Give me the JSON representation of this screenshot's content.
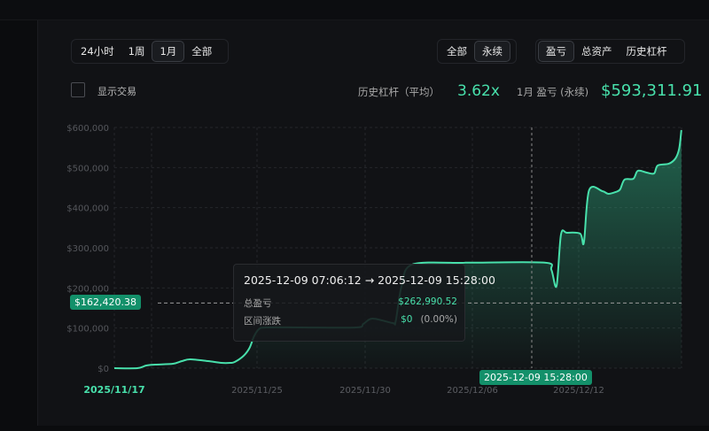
{
  "range_tabs": {
    "items": [
      "24小时",
      "1周",
      "1月",
      "全部"
    ],
    "active": "1月"
  },
  "market_tabs": {
    "items": [
      "全部",
      "永续"
    ],
    "active": "永续"
  },
  "metric_tabs": {
    "items": [
      "盈亏",
      "总资产",
      "历史杠杆"
    ],
    "active": "盈亏"
  },
  "show_trades": {
    "label": "显示交易",
    "checked": false
  },
  "stats": {
    "leverage_label": "历史杠杆（平均）",
    "leverage_value": "3.62x",
    "pnl_label": "1月 盈亏 (永续)",
    "pnl_value": "$593,311.91"
  },
  "tooltip": {
    "title": "2025-12-09 07:06:12 → 2025-12-09 15:28:00",
    "total_pnl_label": "总盈亏",
    "total_pnl_value": "$262,990.52",
    "change_label": "区间涨跌",
    "change_value": "$0",
    "change_pct": "(0.00%)"
  },
  "colors": {
    "accent": "#48e0ab",
    "badge": "#13906a",
    "background": "#111215"
  },
  "chart_data": {
    "type": "area",
    "ylim": [
      0,
      600000
    ],
    "y_ticks": [
      "$0",
      "$100,000",
      "$200,000",
      "$300,000",
      "$400,000",
      "$500,000",
      "$600,000"
    ],
    "x_ticks": [
      "2025/11/17",
      "2025/11/25",
      "2025/11/30",
      "2025/12/06",
      "2025/12/12"
    ],
    "grid": true,
    "crosshair": {
      "x_label": "2025-12-09 15:28:00",
      "y_label": "$162,420.38",
      "y_value": 162420.38
    },
    "points": [
      [
        "2025-11-17 00:00",
        0
      ],
      [
        "2025-11-18 07:00",
        0
      ],
      [
        "2025-11-18 19:00",
        6600
      ],
      [
        "2025-11-19 07:00",
        8800
      ],
      [
        "2025-11-20 07:00",
        11000
      ],
      [
        "2025-11-20 19:00",
        17600
      ],
      [
        "2025-11-21 06:00",
        22000
      ],
      [
        "2025-11-22 06:00",
        17600
      ],
      [
        "2025-11-23 00:00",
        13200
      ],
      [
        "2025-11-23 12:00",
        13200
      ],
      [
        "2025-11-23 18:00",
        15400
      ],
      [
        "2025-11-24 06:00",
        30900
      ],
      [
        "2025-11-24 14:00",
        50700
      ],
      [
        "2025-11-24 20:00",
        79400
      ],
      [
        "2025-11-25 02:00",
        97000
      ],
      [
        "2025-11-25 10:00",
        101500
      ],
      [
        "2025-11-27 01:00",
        101500
      ],
      [
        "2025-11-29 14:00",
        101500
      ],
      [
        "2025-11-29 22:00",
        110300
      ],
      [
        "2025-11-30 10:00",
        123500
      ],
      [
        "2025-12-01 13:00",
        112500
      ],
      [
        "2025-12-01 17:00",
        116900
      ],
      [
        "2025-12-02 01:00",
        205100
      ],
      [
        "2025-12-02 15:00",
        258100
      ],
      [
        "2025-12-05 08:00",
        262500
      ],
      [
        "2025-12-06 00:00",
        262990.52
      ],
      [
        "2025-12-10 02:00",
        262990.52
      ],
      [
        "2025-12-10 11:00",
        244900
      ],
      [
        "2025-12-10 18:00",
        205100
      ],
      [
        "2025-12-11 00:00",
        333100
      ],
      [
        "2025-12-11 08:00",
        337500
      ],
      [
        "2025-12-12 02:00",
        335300
      ],
      [
        "2025-12-12 07:00",
        313200
      ],
      [
        "2025-12-12 14:00",
        443400
      ],
      [
        "2025-12-13 08:00",
        441200
      ],
      [
        "2025-12-13 16:00",
        434600
      ],
      [
        "2025-12-14 02:00",
        439000
      ],
      [
        "2025-12-14 08:00",
        445600
      ],
      [
        "2025-12-14 14:00",
        469900
      ],
      [
        "2025-12-15 02:00",
        472100
      ],
      [
        "2025-12-15 08:00",
        491900
      ],
      [
        "2025-12-15 20:00",
        487500
      ],
      [
        "2025-12-16 06:00",
        485300
      ],
      [
        "2025-12-16 11:00",
        505100
      ],
      [
        "2025-12-17 02:00",
        509600
      ],
      [
        "2025-12-17 11:00",
        522800
      ],
      [
        "2025-12-17 16:00",
        547100
      ],
      [
        "2025-12-17 19:00",
        593311.91
      ]
    ]
  }
}
